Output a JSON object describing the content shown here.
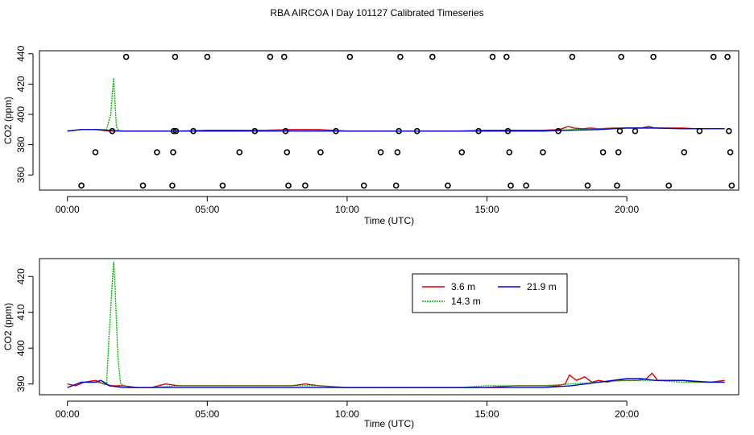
{
  "title": "RBA AIRCOA I  Day 101127  Calibrated Timeseries",
  "chart_data": [
    {
      "type": "scatter",
      "xlabel": "Time (UTC)",
      "ylabel": "CO2 (ppm)",
      "xlim": [
        -1.0,
        24.0
      ],
      "ylim": [
        350,
        442
      ],
      "xticks": [
        0,
        5,
        10,
        15,
        20
      ],
      "xtick_labels": [
        "00:00",
        "05:00",
        "10:00",
        "15:00",
        "20:00"
      ],
      "yticks": [
        360,
        380,
        400,
        420,
        440
      ],
      "ytick_labels": [
        "360",
        "380",
        "400",
        "420",
        "440"
      ],
      "grid": false,
      "legend": null,
      "colors": {
        "3.6 m": "#dd0000",
        "14.3 m": "#00bb00",
        "21.9 m": "#0000dd",
        "points": "#000000"
      },
      "series": [
        {
          "name": "3.6 m",
          "x": [
            0.0,
            0.5,
            1.0,
            1.5,
            2.0,
            3.0,
            4.0,
            5.0,
            6.0,
            7.0,
            8.0,
            9.0,
            10.0,
            11.0,
            12.0,
            13.0,
            14.0,
            15.0,
            16.0,
            17.0,
            17.6,
            17.9,
            18.1,
            18.4,
            18.7,
            19.0,
            19.5,
            20.0,
            20.5,
            20.8,
            21.0,
            21.5,
            22.0,
            22.5,
            23.0,
            23.5
          ],
          "y": [
            389,
            390,
            390,
            389,
            389,
            389,
            389,
            389.5,
            389.5,
            389.5,
            390,
            390,
            389,
            389,
            389,
            389,
            389,
            389.5,
            389.5,
            389.5,
            390,
            392,
            391,
            390.5,
            391,
            390.5,
            391,
            391,
            391,
            392,
            391,
            391,
            391,
            390.5,
            390.5,
            390.5
          ]
        },
        {
          "name": "14.3 m",
          "x": [
            0.0,
            0.5,
            1.0,
            1.4,
            1.55,
            1.65,
            1.75,
            1.85,
            2.0,
            3.0,
            4.0,
            5.0,
            6.0,
            7.0,
            8.0,
            9.0,
            10.0,
            11.0,
            12.0,
            13.0,
            14.0,
            15.0,
            16.0,
            17.0,
            18.0,
            19.0,
            20.0,
            21.0,
            22.0,
            23.0,
            23.5
          ],
          "y": [
            389,
            390,
            390,
            390,
            400,
            424,
            392,
            389,
            389,
            389,
            389,
            389,
            389,
            389.5,
            389.5,
            389.5,
            389,
            389,
            389,
            389,
            389,
            389,
            389,
            389,
            390,
            390.5,
            391,
            391,
            390.5,
            390.5,
            390.5
          ]
        },
        {
          "name": "21.9 m",
          "x": [
            0.0,
            0.5,
            1.0,
            2.0,
            3.0,
            4.0,
            5.0,
            6.0,
            7.0,
            8.0,
            9.0,
            10.0,
            11.0,
            12.0,
            13.0,
            14.0,
            15.0,
            16.0,
            17.0,
            18.0,
            19.0,
            20.0,
            21.0,
            22.0,
            23.0,
            23.5
          ],
          "y": [
            389,
            390,
            390,
            389,
            389,
            389,
            389,
            389,
            389,
            389,
            389,
            389,
            389,
            389,
            389,
            389,
            389,
            389,
            389,
            389.5,
            390,
            391,
            391,
            390.5,
            390.5,
            390.5
          ]
        },
        {
          "name": "",
          "mode": "points",
          "x": [
            0.5,
            1.0,
            1.6,
            2.1,
            2.7,
            3.2,
            3.75,
            3.78,
            3.8,
            3.85,
            3.88,
            4.5,
            5.0,
            5.55,
            6.15,
            6.7,
            7.25,
            7.75,
            7.8,
            7.85,
            7.9,
            8.5,
            9.05,
            9.6,
            10.1,
            10.6,
            11.2,
            11.75,
            11.8,
            11.85,
            11.9,
            12.5,
            13.05,
            13.6,
            14.1,
            14.7,
            15.2,
            15.7,
            15.75,
            15.8,
            15.85,
            16.4,
            17.0,
            17.55,
            18.05,
            18.6,
            19.15,
            19.65,
            19.7,
            19.75,
            19.8,
            20.3,
            20.95,
            21.5,
            22.05,
            22.6,
            23.1,
            23.6,
            23.65,
            23.7,
            23.75
          ],
          "y": [
            353,
            375,
            389,
            438,
            353,
            375,
            353,
            375,
            389,
            438,
            389,
            389,
            438,
            353,
            375,
            389,
            438,
            438,
            389,
            375,
            353,
            353,
            375,
            389,
            438,
            353,
            375,
            353,
            375,
            389,
            438,
            389,
            438,
            353,
            375,
            389,
            438,
            438,
            389,
            375,
            353,
            353,
            375,
            389,
            438,
            353,
            375,
            353,
            375,
            389,
            438,
            389,
            438,
            353,
            375,
            389,
            438,
            438,
            389,
            375,
            353
          ]
        }
      ]
    },
    {
      "type": "line",
      "xlabel": "Time (UTC)",
      "ylabel": "CO2 (ppm)",
      "xlim": [
        -1.0,
        24.0
      ],
      "ylim": [
        387,
        425
      ],
      "xticks": [
        0,
        5,
        10,
        15,
        20
      ],
      "xtick_labels": [
        "00:00",
        "05:00",
        "10:00",
        "15:00",
        "20:00"
      ],
      "yticks": [
        390,
        400,
        410,
        420
      ],
      "ytick_labels": [
        "390",
        "400",
        "410",
        "420"
      ],
      "grid": false,
      "legend": "top-right",
      "colors": {
        "3.6 m": "#dd0000",
        "14.3 m": "#00bb00",
        "21.9 m": "#0000dd"
      },
      "series": [
        {
          "name": "3.6 m",
          "x": [
            0.0,
            0.3,
            0.6,
            1.0,
            1.3,
            1.6,
            2.0,
            2.5,
            3.0,
            3.5,
            4.0,
            5.0,
            6.0,
            7.0,
            8.0,
            8.5,
            9.0,
            10.0,
            11.0,
            12.0,
            13.0,
            14.0,
            15.0,
            16.0,
            17.0,
            17.5,
            17.8,
            17.95,
            18.2,
            18.5,
            18.75,
            19.0,
            19.3,
            19.6,
            20.0,
            20.4,
            20.7,
            20.9,
            21.1,
            21.5,
            22.0,
            22.5,
            23.0,
            23.5
          ],
          "y": [
            390,
            389.5,
            390.5,
            391,
            390,
            389.5,
            389.5,
            389,
            389,
            390,
            389.5,
            389.5,
            389.5,
            389.5,
            389.5,
            390,
            389.5,
            389,
            389,
            389,
            389,
            389,
            389,
            389.5,
            389.5,
            389.5,
            390,
            392.5,
            391,
            392,
            390.5,
            391,
            390.5,
            391,
            391,
            391,
            391.5,
            393,
            391,
            391,
            391,
            390.5,
            390.5,
            391
          ]
        },
        {
          "name": "14.3 m",
          "x": [
            0.0,
            0.5,
            1.0,
            1.4,
            1.5,
            1.6,
            1.65,
            1.7,
            1.8,
            1.9,
            2.2,
            3.0,
            4.0,
            5.0,
            6.0,
            7.0,
            8.0,
            9.0,
            10.0,
            11.0,
            12.0,
            13.0,
            14.0,
            15.0,
            16.0,
            17.0,
            18.0,
            19.0,
            20.0,
            21.0,
            22.0,
            23.0,
            23.5
          ],
          "y": [
            389,
            390.5,
            390.5,
            390,
            405,
            418,
            424,
            418,
            398,
            390,
            389,
            389,
            389.5,
            389.5,
            389.5,
            389.5,
            389.5,
            389.5,
            389,
            389,
            389,
            389,
            389,
            389.5,
            389.5,
            389.5,
            390,
            390.5,
            391,
            391,
            390.5,
            390.5,
            390.5
          ]
        },
        {
          "name": "21.9 m",
          "x": [
            0.0,
            0.5,
            1.0,
            1.2,
            1.5,
            2.0,
            3.0,
            4.0,
            5.0,
            6.0,
            7.0,
            8.0,
            9.0,
            10.0,
            11.0,
            12.0,
            13.0,
            14.0,
            15.0,
            16.0,
            17.0,
            18.0,
            19.0,
            20.0,
            20.5,
            21.0,
            22.0,
            23.0,
            23.5
          ],
          "y": [
            389,
            390.5,
            390.5,
            391,
            389.5,
            389,
            389,
            389,
            389,
            389,
            389,
            389,
            389,
            389,
            389,
            389,
            389,
            389,
            389,
            389,
            389,
            389.5,
            390.5,
            391.5,
            391.5,
            391,
            391,
            390.5,
            390.5
          ]
        }
      ]
    }
  ]
}
